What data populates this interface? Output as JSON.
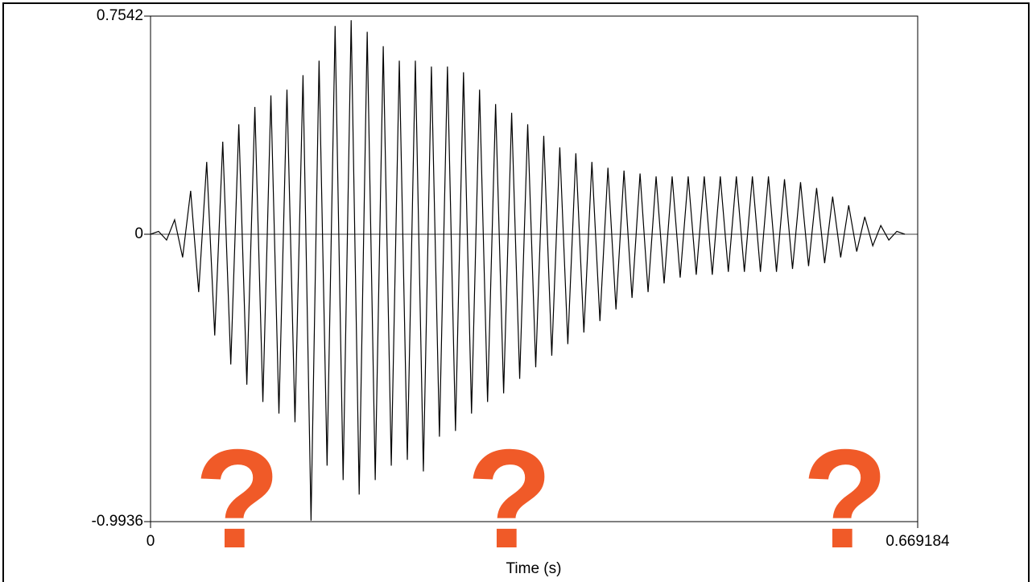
{
  "chart_data": {
    "type": "line",
    "xlabel": "Time (s)",
    "x": [
      0,
      0.007,
      0.014,
      0.021,
      0.028,
      0.035,
      0.042,
      0.049,
      0.056,
      0.063,
      0.07,
      0.077,
      0.084,
      0.091,
      0.098,
      0.105,
      0.112,
      0.119,
      0.126,
      0.133,
      0.14,
      0.147,
      0.154,
      0.161,
      0.168,
      0.175,
      0.182,
      0.189,
      0.196,
      0.203,
      0.21,
      0.217,
      0.224,
      0.231,
      0.238,
      0.245,
      0.252,
      0.259,
      0.266,
      0.273,
      0.28,
      0.287,
      0.294,
      0.301,
      0.308,
      0.315,
      0.322,
      0.329,
      0.336,
      0.343,
      0.35,
      0.357,
      0.364,
      0.371,
      0.378,
      0.385,
      0.392,
      0.399,
      0.406,
      0.413,
      0.42,
      0.427,
      0.434,
      0.441,
      0.448,
      0.455,
      0.462,
      0.469,
      0.476,
      0.483,
      0.49,
      0.497,
      0.504,
      0.511,
      0.518,
      0.525,
      0.532,
      0.539,
      0.546,
      0.553,
      0.56,
      0.567,
      0.574,
      0.581,
      0.588,
      0.595,
      0.602,
      0.609,
      0.616,
      0.623,
      0.63,
      0.637,
      0.644,
      0.651,
      0.658
    ],
    "series": [
      {
        "color": "#000000",
        "values": [
          0,
          0.01,
          -0.02,
          0.05,
          -0.08,
          0.15,
          -0.2,
          0.25,
          -0.35,
          0.32,
          -0.45,
          0.38,
          -0.52,
          0.44,
          -0.58,
          0.48,
          -0.62,
          0.5,
          -0.65,
          0.55,
          -0.99,
          0.6,
          -0.8,
          0.72,
          -0.85,
          0.74,
          -0.9,
          0.7,
          -0.85,
          0.65,
          -0.8,
          0.6,
          -0.78,
          0.6,
          -0.82,
          0.58,
          -0.7,
          0.58,
          -0.68,
          0.56,
          -0.62,
          0.5,
          -0.58,
          0.45,
          -0.55,
          0.42,
          -0.5,
          0.38,
          -0.46,
          0.34,
          -0.42,
          0.3,
          -0.38,
          0.28,
          -0.34,
          0.25,
          -0.3,
          0.23,
          -0.26,
          0.22,
          -0.22,
          0.21,
          -0.2,
          0.2,
          -0.17,
          0.2,
          -0.15,
          0.2,
          -0.14,
          0.2,
          -0.14,
          0.2,
          -0.13,
          0.2,
          -0.13,
          0.2,
          -0.13,
          0.2,
          -0.13,
          0.19,
          -0.12,
          0.18,
          -0.11,
          0.16,
          -0.1,
          0.13,
          -0.08,
          0.1,
          -0.06,
          0.06,
          -0.04,
          0.03,
          -0.02,
          0.01,
          0
        ]
      }
    ],
    "xlim": [
      0,
      0.669184
    ],
    "xticks": [
      0,
      0.669184
    ],
    "ylim": [
      -0.9936,
      0.7542
    ],
    "yticks": [
      -0.9936,
      0,
      0.7542
    ],
    "annotations": [
      "?",
      "?",
      "?"
    ],
    "annotation_color": "#f05a28"
  }
}
